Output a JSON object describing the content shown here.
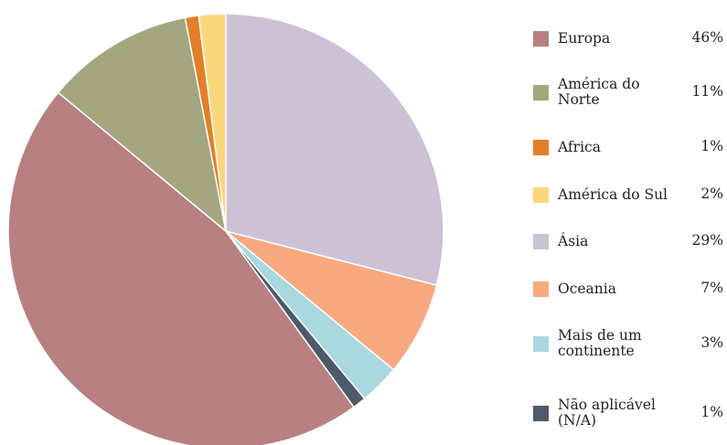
{
  "chart_data": {
    "type": "pie",
    "categories": [
      "Europa",
      "América do Norte",
      "Africa",
      "América do Sul",
      "Ásia",
      "Oceania",
      "Mais de um continente",
      "Não aplicável (N/A)"
    ],
    "legend": [
      {
        "label": "Europa",
        "value_label": "46%",
        "value": 46,
        "color": "#b88080"
      },
      {
        "label": "América do Norte",
        "value_label": "11%",
        "value": 11,
        "color": "#a5a680"
      },
      {
        "label": "Africa",
        "value_label": "1%",
        "value": 1,
        "color": "#e37f28"
      },
      {
        "label": "América do Sul",
        "value_label": "2%",
        "value": 2,
        "color": "#fbd77c"
      },
      {
        "label": "Ásia",
        "value_label": "29%",
        "value": 29,
        "color": "#cdc1d6"
      },
      {
        "label": "Oceania",
        "value_label": "7%",
        "value": 7,
        "color": "#f9a980"
      },
      {
        "label": "Mais de um continente",
        "value_label": "3%",
        "value": 3,
        "color": "#aad8df"
      },
      {
        "label": "Não aplicável (N/A)",
        "value_label": "1%",
        "value": 1,
        "color": "#4c5a69"
      }
    ],
    "slice_order_clockwise_from_top": [
      "Ásia",
      "Oceania",
      "Mais de um continente",
      "Não aplicável (N/A)",
      "Europa",
      "América do Norte",
      "Africa",
      "América do Sul"
    ],
    "legend_position": "right"
  }
}
